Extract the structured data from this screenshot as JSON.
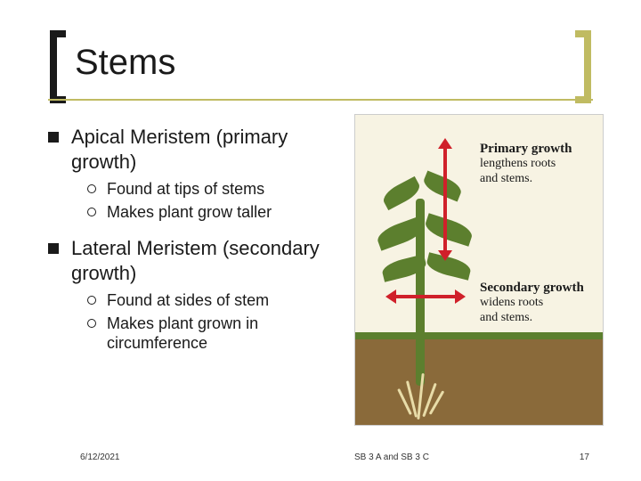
{
  "title": "Stems",
  "colors": {
    "accent": "#c0bb62",
    "text": "#1a1a1a",
    "arrow": "#d0202a",
    "leaf": "#5c7f2e",
    "soil": "#8a6a3a",
    "root": "#e8dca8",
    "figure_bg": "#f7f3e3"
  },
  "bullets": [
    {
      "text": "Apical Meristem (primary growth)",
      "sub": [
        "Found at tips of stems",
        "Makes plant grow taller"
      ]
    },
    {
      "text": "Lateral Meristem (secondary growth)",
      "sub": [
        "Found at sides of stem",
        "Makes plant grown in circumference"
      ]
    }
  ],
  "figure": {
    "primary": {
      "heading": "Primary growth",
      "desc_line1": "lengthens roots",
      "desc_line2": "and stems."
    },
    "secondary": {
      "heading": "Secondary growth",
      "desc_line1": "widens roots",
      "desc_line2": "and stems."
    }
  },
  "footer": {
    "date": "6/12/2021",
    "center": "SB 3 A and SB 3 C",
    "page": "17"
  }
}
